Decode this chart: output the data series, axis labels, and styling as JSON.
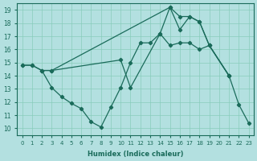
{
  "xlabel": "Humidex (Indice chaleur)",
  "bg_color": "#b3e0e0",
  "line_color": "#1a6b5a",
  "grid_color": "#88ccbb",
  "xlim": [
    -0.5,
    23.5
  ],
  "ylim": [
    9.5,
    19.5
  ],
  "xticks": [
    0,
    1,
    2,
    3,
    4,
    5,
    6,
    7,
    8,
    9,
    10,
    11,
    12,
    13,
    14,
    15,
    16,
    17,
    18,
    19,
    20,
    21,
    22,
    23
  ],
  "yticks": [
    10,
    11,
    12,
    13,
    14,
    15,
    16,
    17,
    18,
    19
  ],
  "series": [
    {
      "x": [
        2,
        3,
        15,
        16,
        17,
        18,
        19,
        21
      ],
      "y": [
        14.4,
        14.4,
        19.2,
        18.5,
        18.5,
        18.1,
        16.3,
        14.0
      ]
    },
    {
      "x": [
        0,
        1,
        2,
        3,
        10,
        11,
        14,
        15,
        16,
        17,
        18,
        19,
        21
      ],
      "y": [
        14.8,
        14.8,
        14.4,
        14.4,
        15.2,
        13.1,
        17.2,
        19.2,
        17.5,
        18.5,
        18.1,
        16.3,
        14.0
      ]
    },
    {
      "x": [
        0,
        1,
        2,
        3,
        4,
        5,
        6,
        7,
        8,
        9,
        10,
        11,
        12,
        13,
        14,
        15,
        16,
        17,
        18,
        19,
        21,
        22,
        23
      ],
      "y": [
        14.8,
        14.8,
        14.4,
        13.1,
        12.4,
        11.9,
        11.5,
        10.5,
        10.1,
        11.6,
        13.1,
        15.0,
        16.5,
        16.5,
        17.2,
        16.3,
        16.5,
        16.5,
        16.0,
        16.3,
        14.0,
        11.8,
        10.4
      ]
    }
  ]
}
